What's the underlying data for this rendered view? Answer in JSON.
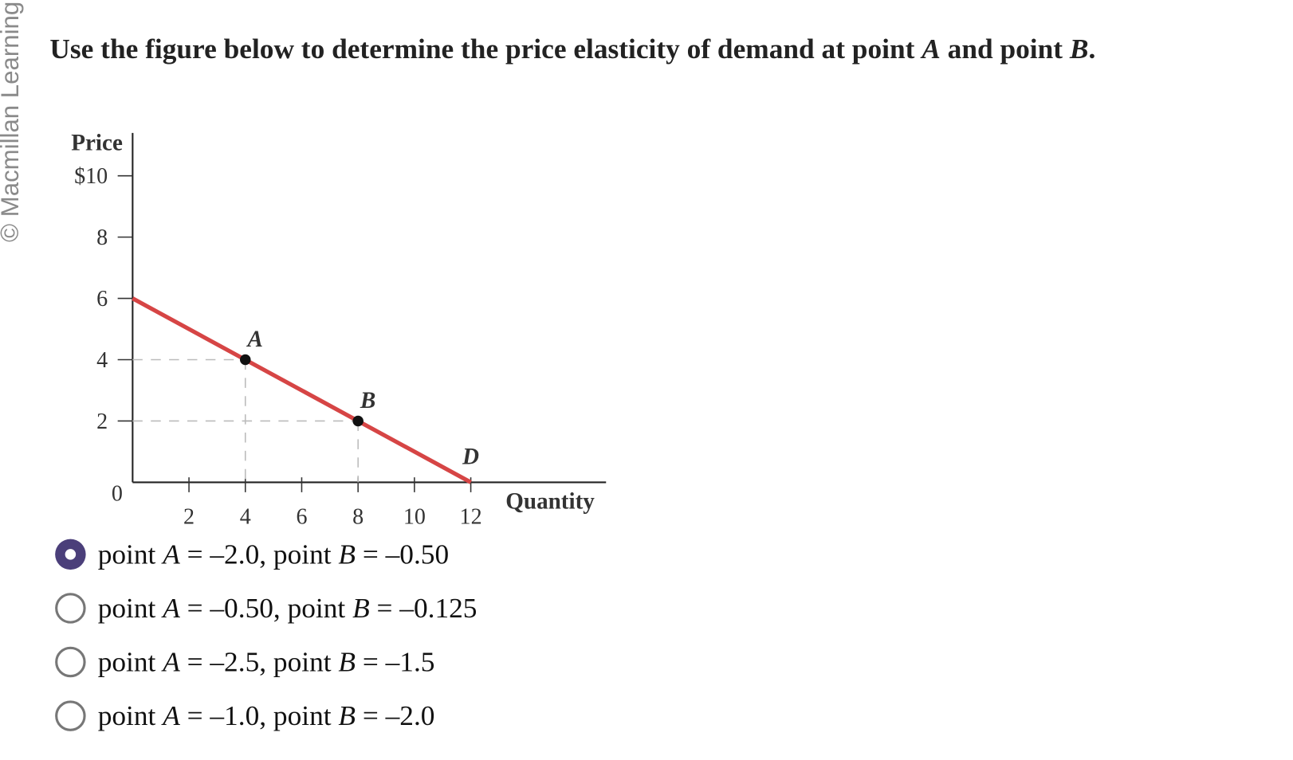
{
  "watermark": "© Macmillan Learning",
  "question": [
    "Use the figure below to determine the price elasticity of demand at point ",
    "A",
    " and point ",
    "B",
    "."
  ],
  "chart_data": {
    "type": "line",
    "ylabel": "Price",
    "xlabel": "Quantity",
    "x": [
      0,
      12
    ],
    "series": [
      {
        "name": "D",
        "color": "#d64545",
        "values": [
          6,
          0
        ]
      }
    ],
    "points": [
      {
        "label": "A",
        "x": 4,
        "y": 4
      },
      {
        "label": "B",
        "x": 8,
        "y": 2
      }
    ],
    "point_color": "#111",
    "xlim": [
      0,
      16.8
    ],
    "ylim": [
      0,
      11.4
    ],
    "xticks": [
      2,
      4,
      6,
      8,
      10,
      12
    ],
    "yticks": [
      {
        "value": 10,
        "label": "$10"
      },
      8,
      6,
      4,
      2,
      0
    ]
  },
  "options": [
    [
      "point ",
      "A",
      " = –2.0, point ",
      "B",
      " = –0.50"
    ],
    [
      "point ",
      "A",
      " = –0.50, point ",
      "B",
      " = –0.125"
    ],
    [
      "point ",
      "A",
      " = –2.5, point ",
      "B",
      " = –1.5"
    ],
    [
      "point ",
      "A",
      " = –1.0, point ",
      "B",
      " = –2.0"
    ]
  ],
  "selected": 0
}
